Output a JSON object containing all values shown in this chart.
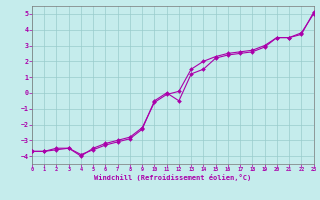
{
  "xlabel": "Windchill (Refroidissement éolien,°C)",
  "xlim": [
    0,
    23
  ],
  "ylim": [
    -4.5,
    5.5
  ],
  "yticks": [
    -4,
    -3,
    -2,
    -1,
    0,
    1,
    2,
    3,
    4,
    5
  ],
  "xticks": [
    0,
    1,
    2,
    3,
    4,
    5,
    6,
    7,
    8,
    9,
    10,
    11,
    12,
    13,
    14,
    15,
    16,
    17,
    18,
    19,
    20,
    21,
    22,
    23
  ],
  "bg_color": "#c5ecec",
  "line_color": "#aa00aa",
  "grid_color": "#99cccc",
  "line1_x": [
    0,
    1,
    2,
    3,
    4,
    5,
    6,
    7,
    8,
    9,
    10,
    11,
    12,
    13,
    14,
    15,
    16,
    17,
    18,
    19,
    20,
    21,
    22,
    23
  ],
  "line1_y": [
    -3.7,
    -3.7,
    -3.5,
    -3.5,
    -3.9,
    -3.6,
    -3.3,
    -3.1,
    -2.9,
    -2.3,
    -0.5,
    0.0,
    -0.5,
    1.2,
    1.5,
    2.2,
    2.4,
    2.5,
    2.6,
    2.9,
    3.5,
    3.5,
    3.8,
    5.0
  ],
  "line2_x": [
    0,
    1,
    2,
    3,
    4,
    5,
    6,
    7,
    8,
    9,
    10,
    11,
    12,
    13,
    14,
    15,
    16,
    17,
    18,
    19,
    20,
    21,
    22,
    23
  ],
  "line2_y": [
    -3.7,
    -3.7,
    -3.6,
    -3.5,
    -4.0,
    -3.5,
    -3.2,
    -3.0,
    -2.8,
    -2.2,
    -0.6,
    -0.1,
    0.1,
    1.5,
    2.0,
    2.3,
    2.5,
    2.6,
    2.7,
    3.0,
    3.5,
    3.5,
    3.7,
    5.1
  ]
}
